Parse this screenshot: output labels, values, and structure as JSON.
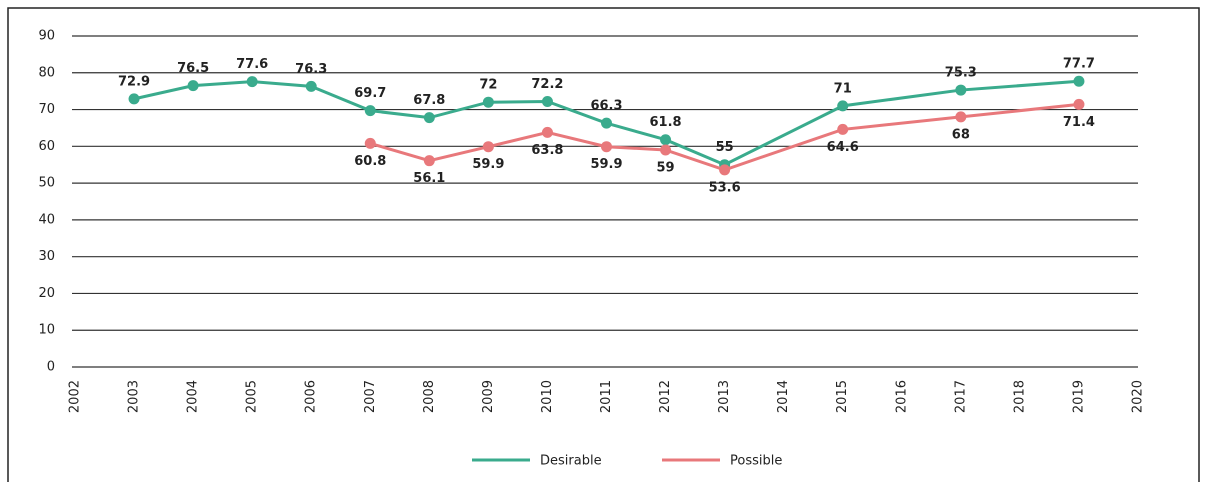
{
  "chart_data": {
    "type": "line",
    "x": [
      2003,
      2004,
      2005,
      2006,
      2007,
      2008,
      2009,
      2010,
      2011,
      2012,
      2013,
      2015,
      2017,
      2019
    ],
    "series": [
      {
        "name": "Desirable",
        "color": "#3aab8d",
        "values": [
          72.9,
          76.5,
          77.6,
          76.3,
          69.7,
          67.8,
          72,
          72.2,
          66.3,
          61.8,
          55,
          71,
          75.3,
          77.7
        ]
      },
      {
        "name": "Possible",
        "color": "#e8787b",
        "values": [
          null,
          null,
          null,
          null,
          60.8,
          56.1,
          59.9,
          63.8,
          59.9,
          59,
          53.6,
          64.6,
          68,
          71.4
        ]
      }
    ],
    "xlim": [
      2002,
      2020
    ],
    "xticks": [
      2002,
      2003,
      2004,
      2005,
      2006,
      2007,
      2008,
      2009,
      2010,
      2011,
      2012,
      2013,
      2014,
      2015,
      2016,
      2017,
      2018,
      2019,
      2020
    ],
    "ylim": [
      0,
      90
    ],
    "yticks": [
      0,
      10,
      20,
      30,
      40,
      50,
      60,
      70,
      80,
      90
    ],
    "grid": true,
    "legend": "bottom"
  }
}
